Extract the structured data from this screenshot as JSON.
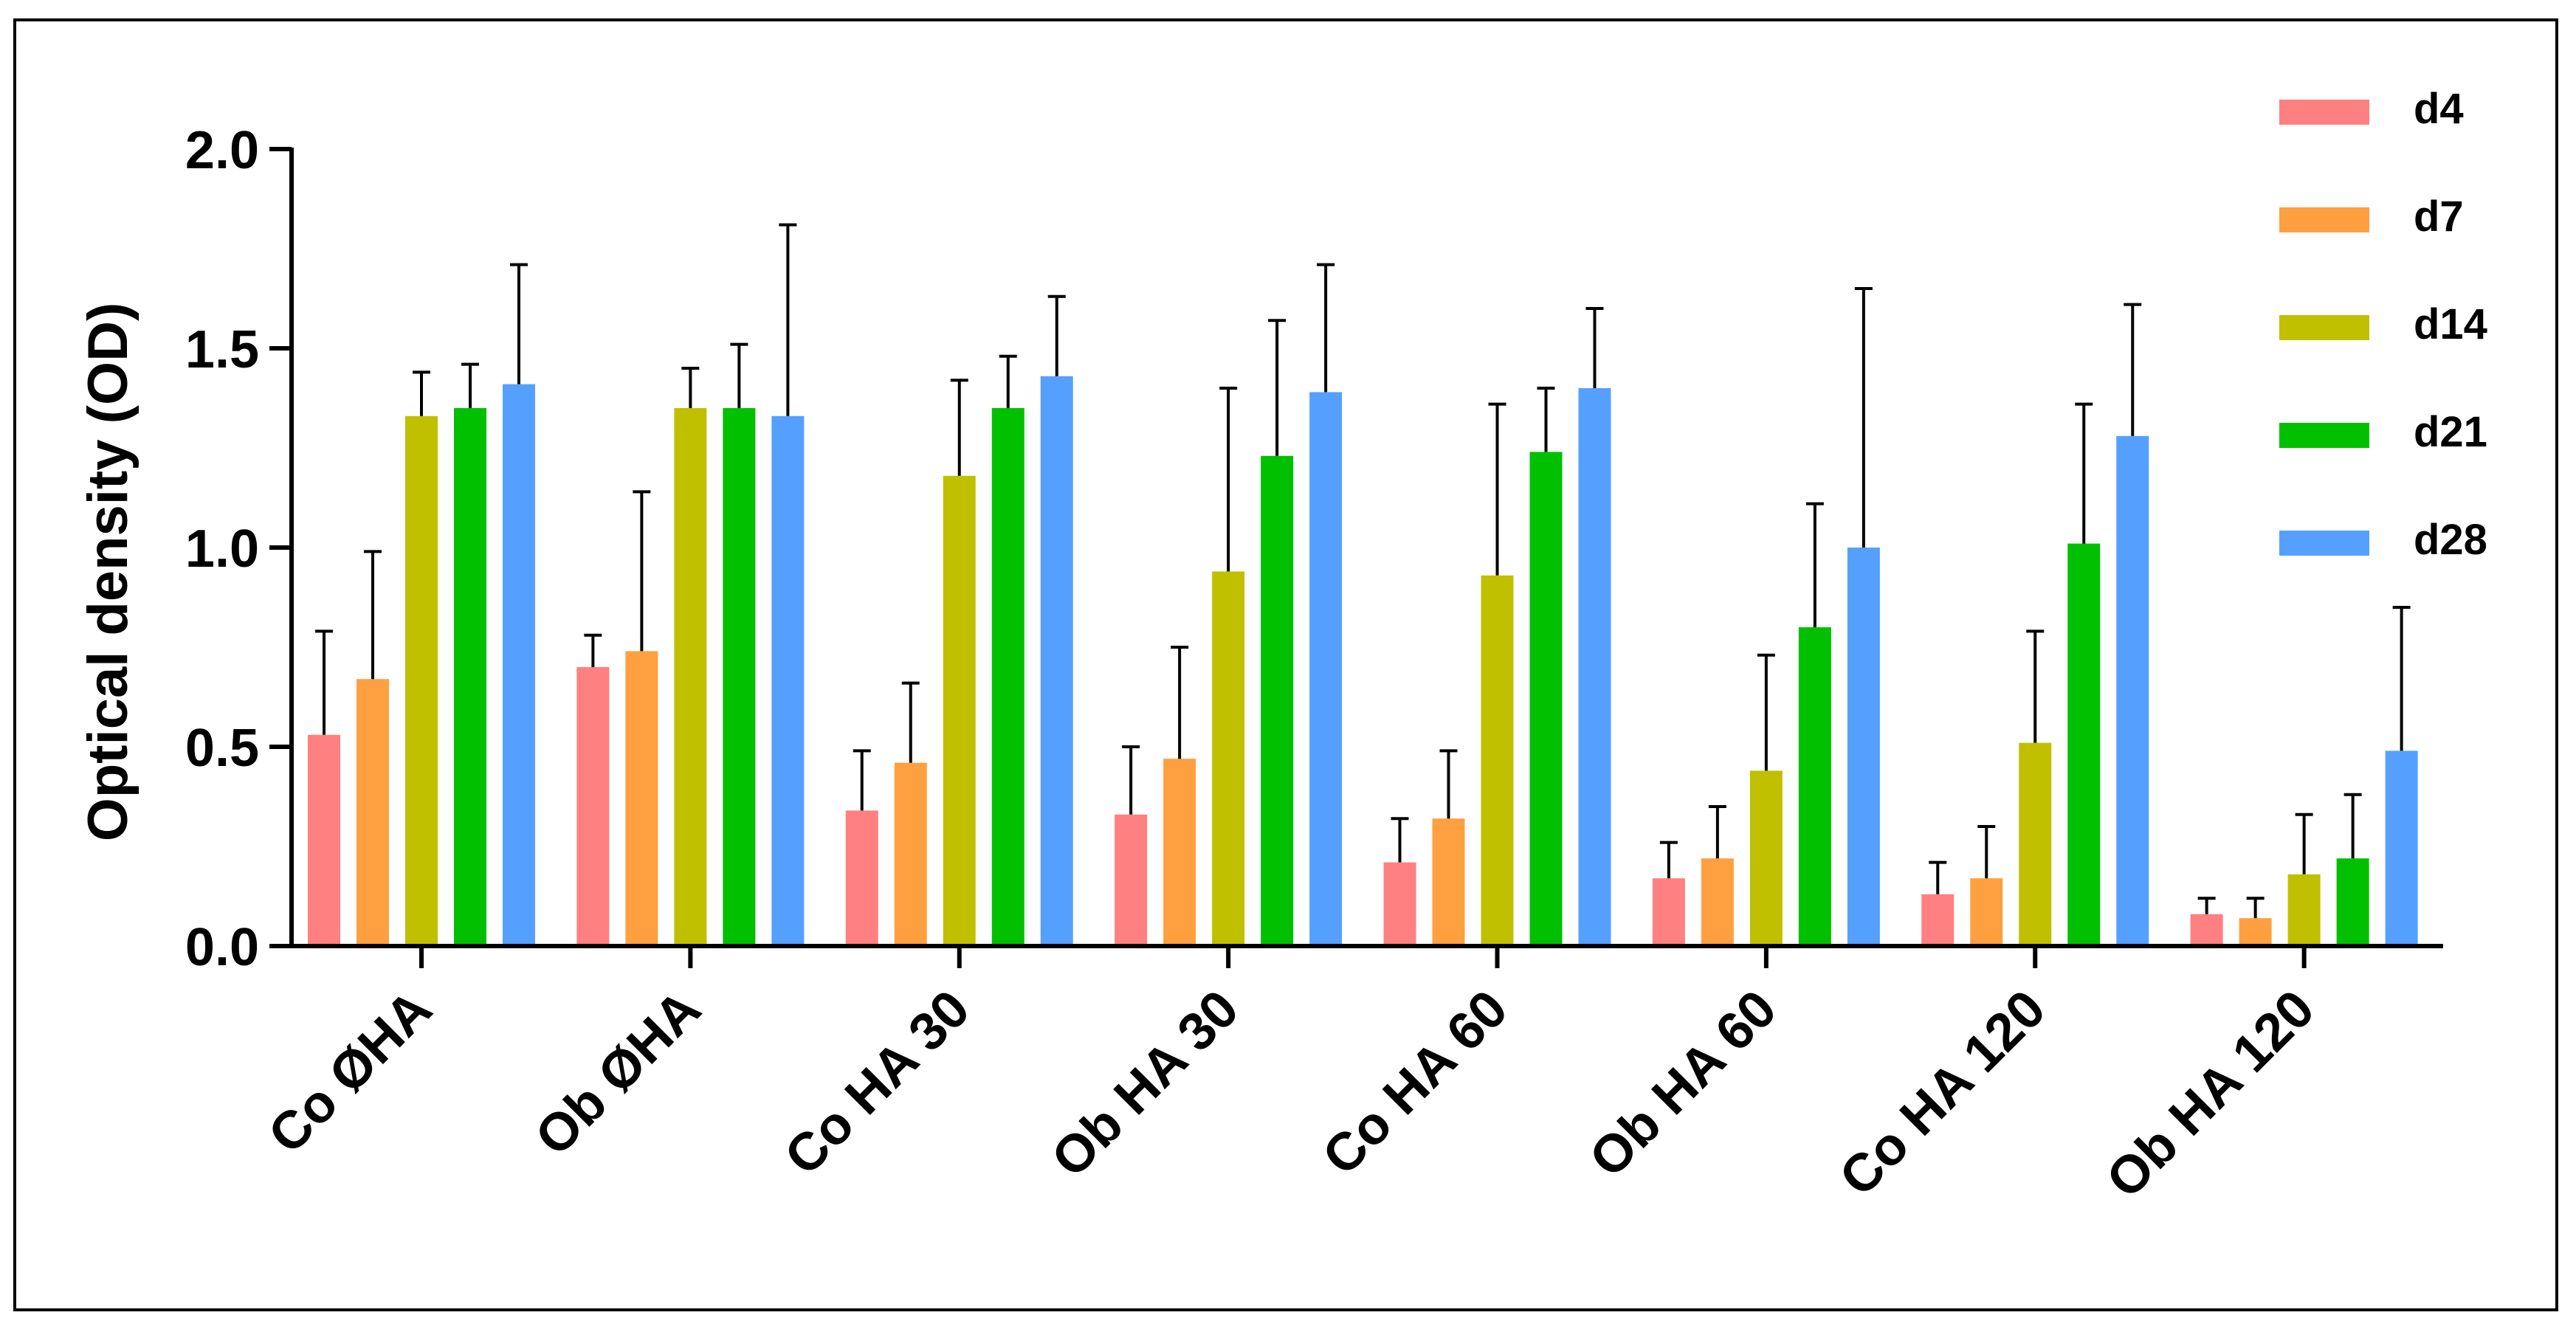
{
  "chart_data": {
    "type": "bar",
    "title": "",
    "xlabel": "",
    "ylabel": "Optical density (OD)",
    "ylim": [
      0,
      2.0
    ],
    "yticks": [
      "0.0",
      "0.5",
      "1.0",
      "1.5",
      "2.0"
    ],
    "grid": false,
    "legend_position": "top-right",
    "error_bars": true,
    "categories": [
      "Co ØHA",
      "Ob ØHA",
      "Co HA 30",
      "Ob HA 30",
      "Co HA 60",
      "Ob HA 60",
      "Co HA 120",
      "Ob HA 120"
    ],
    "series": [
      {
        "name": "d4",
        "color": "#FF8080",
        "values": [
          0.53,
          0.7,
          0.34,
          0.33,
          0.21,
          0.17,
          0.13,
          0.08
        ],
        "errors": [
          0.26,
          0.08,
          0.15,
          0.17,
          0.11,
          0.09,
          0.08,
          0.04
        ]
      },
      {
        "name": "d7",
        "color": "#FFA040",
        "values": [
          0.67,
          0.74,
          0.46,
          0.47,
          0.32,
          0.22,
          0.17,
          0.07
        ],
        "errors": [
          0.32,
          0.4,
          0.2,
          0.28,
          0.17,
          0.13,
          0.13,
          0.05
        ]
      },
      {
        "name": "d14",
        "color": "#C0C000",
        "values": [
          1.33,
          1.35,
          1.18,
          0.94,
          0.93,
          0.44,
          0.51,
          0.18
        ],
        "errors": [
          0.11,
          0.1,
          0.24,
          0.46,
          0.43,
          0.29,
          0.28,
          0.15
        ]
      },
      {
        "name": "d21",
        "color": "#00C000",
        "values": [
          1.35,
          1.35,
          1.35,
          1.23,
          1.24,
          0.8,
          1.01,
          0.22
        ],
        "errors": [
          0.11,
          0.16,
          0.13,
          0.34,
          0.16,
          0.31,
          0.35,
          0.16
        ]
      },
      {
        "name": "d28",
        "color": "#55A0FF",
        "values": [
          1.41,
          1.33,
          1.43,
          1.39,
          1.4,
          1.0,
          1.28,
          0.49
        ],
        "errors": [
          0.3,
          0.48,
          0.2,
          0.32,
          0.2,
          0.65,
          0.33,
          0.36
        ]
      }
    ]
  }
}
